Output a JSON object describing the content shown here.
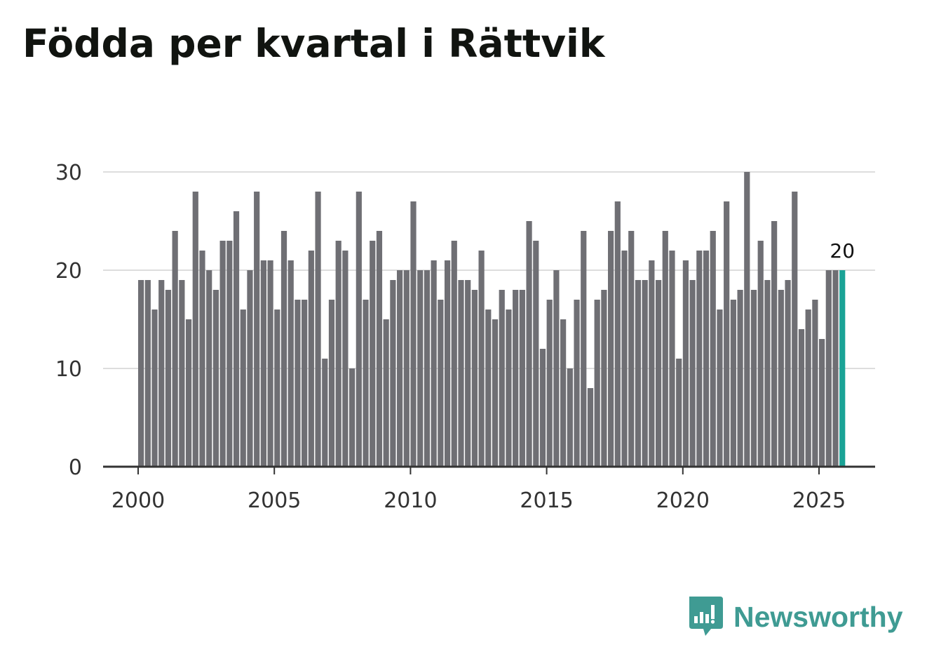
{
  "title": "Födda per kvartal i Rättvik",
  "brand": {
    "name": "Newsworthy",
    "color": "#3f9b93",
    "icon": "newsworthy-logo-icon"
  },
  "colors": {
    "bar": "#6f6f74",
    "highlight": "#1aa396",
    "grid": "#dddddd",
    "axis": "#333333"
  },
  "chart_data": {
    "type": "bar",
    "title": "Födda per kvartal i Rättvik",
    "xlabel": "",
    "ylabel": "",
    "ylim": [
      0,
      30
    ],
    "yticks": [
      0,
      10,
      20,
      30
    ],
    "xticks": [
      "2000",
      "2005",
      "2010",
      "2015",
      "2020",
      "2025"
    ],
    "start_year": 2000,
    "quarters_per_year": 4,
    "highlight_last": true,
    "last_value_label": "20",
    "categories": [
      "2000 Q1",
      "2000 Q2",
      "2000 Q3",
      "2000 Q4",
      "2001 Q1",
      "2001 Q2",
      "2001 Q3",
      "2001 Q4",
      "2002 Q1",
      "2002 Q2",
      "2002 Q3",
      "2002 Q4",
      "2003 Q1",
      "2003 Q2",
      "2003 Q3",
      "2003 Q4",
      "2004 Q1",
      "2004 Q2",
      "2004 Q3",
      "2004 Q4",
      "2005 Q1",
      "2005 Q2",
      "2005 Q3",
      "2005 Q4",
      "2006 Q1",
      "2006 Q2",
      "2006 Q3",
      "2006 Q4",
      "2007 Q1",
      "2007 Q2",
      "2007 Q3",
      "2007 Q4",
      "2008 Q1",
      "2008 Q2",
      "2008 Q3",
      "2008 Q4",
      "2009 Q1",
      "2009 Q2",
      "2009 Q3",
      "2009 Q4",
      "2010 Q1",
      "2010 Q2",
      "2010 Q3",
      "2010 Q4",
      "2011 Q1",
      "2011 Q2",
      "2011 Q3",
      "2011 Q4",
      "2012 Q1",
      "2012 Q2",
      "2012 Q3",
      "2012 Q4",
      "2013 Q1",
      "2013 Q2",
      "2013 Q3",
      "2013 Q4",
      "2014 Q1",
      "2014 Q2",
      "2014 Q3",
      "2014 Q4",
      "2015 Q1",
      "2015 Q2",
      "2015 Q3",
      "2015 Q4",
      "2016 Q1",
      "2016 Q2",
      "2016 Q3",
      "2016 Q4",
      "2017 Q1",
      "2017 Q2",
      "2017 Q3",
      "2017 Q4",
      "2018 Q1",
      "2018 Q2",
      "2018 Q3",
      "2018 Q4",
      "2019 Q1",
      "2019 Q2",
      "2019 Q3",
      "2019 Q4",
      "2020 Q1",
      "2020 Q2",
      "2020 Q3",
      "2020 Q4",
      "2021 Q1",
      "2021 Q2",
      "2021 Q3",
      "2021 Q4",
      "2022 Q1",
      "2022 Q2",
      "2022 Q3",
      "2022 Q4",
      "2023 Q1",
      "2023 Q2",
      "2023 Q3",
      "2023 Q4",
      "2024 Q1",
      "2024 Q2",
      "2024 Q3",
      "2024 Q4",
      "2025 Q1",
      "2025 Q2",
      "2025 Q3",
      "2025 Q4"
    ],
    "values": [
      19,
      19,
      16,
      19,
      18,
      24,
      19,
      15,
      28,
      22,
      20,
      18,
      23,
      23,
      26,
      16,
      20,
      28,
      21,
      21,
      16,
      24,
      21,
      17,
      17,
      22,
      28,
      11,
      17,
      23,
      22,
      10,
      28,
      17,
      23,
      24,
      15,
      19,
      20,
      20,
      27,
      20,
      20,
      21,
      17,
      21,
      23,
      19,
      19,
      18,
      22,
      16,
      15,
      18,
      16,
      18,
      18,
      25,
      23,
      12,
      17,
      20,
      15,
      10,
      17,
      24,
      8,
      17,
      18,
      24,
      27,
      22,
      24,
      19,
      19,
      21,
      19,
      24,
      22,
      11,
      21,
      19,
      22,
      22,
      24,
      16,
      27,
      17,
      18,
      30,
      18,
      23,
      19,
      25,
      18,
      19,
      28,
      14,
      16,
      17,
      13,
      20,
      20,
      20
    ]
  }
}
